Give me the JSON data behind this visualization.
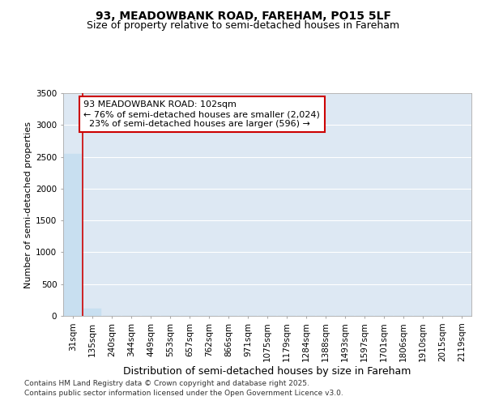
{
  "title_line1": "93, MEADOWBANK ROAD, FAREHAM, PO15 5LF",
  "title_line2": "Size of property relative to semi-detached houses in Fareham",
  "xlabel": "Distribution of semi-detached houses by size in Fareham",
  "ylabel": "Number of semi-detached properties",
  "categories": [
    "31sqm",
    "135sqm",
    "240sqm",
    "344sqm",
    "449sqm",
    "553sqm",
    "657sqm",
    "762sqm",
    "866sqm",
    "971sqm",
    "1075sqm",
    "1179sqm",
    "1284sqm",
    "1388sqm",
    "1493sqm",
    "1597sqm",
    "1701sqm",
    "1806sqm",
    "1910sqm",
    "2015sqm",
    "2119sqm"
  ],
  "values": [
    2540,
    110,
    0,
    0,
    0,
    0,
    0,
    0,
    0,
    0,
    0,
    0,
    0,
    0,
    0,
    0,
    0,
    0,
    0,
    0,
    0
  ],
  "bar_color": "#c8dff0",
  "bar_edge_color": "#c8dff0",
  "property_line_color": "#cc0000",
  "property_line_x": 0.5,
  "annotation_text": "93 MEADOWBANK ROAD: 102sqm\n← 76% of semi-detached houses are smaller (2,024)\n  23% of semi-detached houses are larger (596) →",
  "annotation_box_edgecolor": "#cc0000",
  "ylim": [
    0,
    3500
  ],
  "yticks": [
    0,
    500,
    1000,
    1500,
    2000,
    2500,
    3000,
    3500
  ],
  "background_color": "#dde8f3",
  "grid_color": "#ffffff",
  "footer_line1": "Contains HM Land Registry data © Crown copyright and database right 2025.",
  "footer_line2": "Contains public sector information licensed under the Open Government Licence v3.0.",
  "title_fontsize": 10,
  "subtitle_fontsize": 9,
  "ylabel_fontsize": 8,
  "xlabel_fontsize": 9,
  "tick_fontsize": 7.5,
  "annot_fontsize": 8,
  "footer_fontsize": 6.5
}
